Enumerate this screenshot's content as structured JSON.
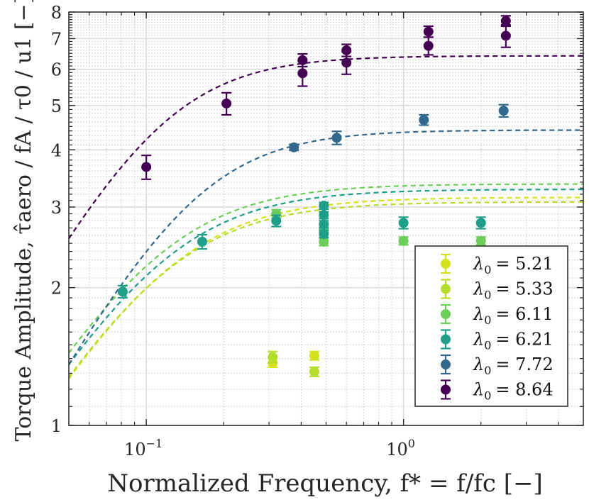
{
  "chart_data": {
    "type": "scatter",
    "xscale": "log",
    "yscale": "log",
    "xlim": [
      0.05,
      5
    ],
    "ylim": [
      1,
      8
    ],
    "grid": true,
    "minor_grid": true,
    "legend_position": "bottom-right",
    "xlabel": "Normalized Frequency, f* = f/fc [−]",
    "ylabel_prefix": "Torque Amplitude, ",
    "ylabel_math": "τ̂aero / fA / τ0 / u1",
    "ylabel_suffix": "[−]",
    "xticks": [
      {
        "value": 0.1,
        "base": "10",
        "exp": "−1"
      },
      {
        "value": 1,
        "base": "10",
        "exp": "0"
      }
    ],
    "yticks": [
      {
        "value": 1,
        "label": "1"
      },
      {
        "value": 2,
        "label": "2"
      },
      {
        "value": 3,
        "label": "3"
      },
      {
        "value": 4,
        "label": "4"
      },
      {
        "value": 5,
        "label": "5"
      },
      {
        "value": 6,
        "label": "6"
      },
      {
        "value": 7,
        "label": "7"
      },
      {
        "value": 8,
        "label": "8"
      }
    ],
    "series": [
      {
        "name": "λ0 = 5.21",
        "lambda_symbol": "λ",
        "lambda_sub": "0",
        "lambda_value": "= 5.21",
        "color": "#D3E21C",
        "points": [
          {
            "x": 0.31,
            "y": 1.37,
            "err": 0.03
          },
          {
            "x": 0.45,
            "y": 1.42,
            "err": 0.03
          }
        ],
        "fit": {
          "a": 3.15,
          "fc": 0.125,
          "n": 0.9
        }
      },
      {
        "name": "λ0 = 5.33",
        "lambda_symbol": "λ",
        "lambda_sub": "0",
        "lambda_value": "= 5.33",
        "color": "#B5DE2B",
        "points": [
          {
            "x": 0.31,
            "y": 1.41,
            "err": 0.04
          },
          {
            "x": 0.45,
            "y": 1.31,
            "err": 0.03
          }
        ],
        "fit": {
          "a": 3.08,
          "fc": 0.12,
          "n": 0.9
        }
      },
      {
        "name": "λ0 = 6.11",
        "lambda_symbol": "λ",
        "lambda_sub": "0",
        "lambda_value": "= 6.11",
        "color": "#6CCE59",
        "points": [
          {
            "x": 0.32,
            "y": 2.9,
            "err": 0.06
          },
          {
            "x": 0.49,
            "y": 2.52,
            "err": 0.05
          },
          {
            "x": 0.49,
            "y": 2.7,
            "err": 0.05
          },
          {
            "x": 1.0,
            "y": 2.53,
            "err": 0.05
          },
          {
            "x": 2.0,
            "y": 2.53,
            "err": 0.05
          }
        ],
        "fit": {
          "a": 3.37,
          "fc": 0.115,
          "n": 0.9
        }
      },
      {
        "name": "λ0 = 6.21",
        "lambda_symbol": "λ",
        "lambda_sub": "0",
        "lambda_value": "= 6.21",
        "color": "#1F9E89",
        "points": [
          {
            "x": 0.081,
            "y": 1.96,
            "err": 0.06
          },
          {
            "x": 0.165,
            "y": 2.52,
            "err": 0.09
          },
          {
            "x": 0.32,
            "y": 2.8,
            "err": 0.08
          },
          {
            "x": 0.49,
            "y": 2.62,
            "err": 0.05
          },
          {
            "x": 0.49,
            "y": 2.75,
            "err": 0.05
          },
          {
            "x": 0.49,
            "y": 2.88,
            "err": 0.05
          },
          {
            "x": 0.49,
            "y": 3.02,
            "err": 0.05
          },
          {
            "x": 1.0,
            "y": 2.77,
            "err": 0.08
          },
          {
            "x": 2.0,
            "y": 2.77,
            "err": 0.08
          }
        ],
        "fit": {
          "a": 3.28,
          "fc": 0.12,
          "n": 0.9
        }
      },
      {
        "name": "λ0 = 7.72",
        "lambda_symbol": "λ",
        "lambda_sub": "0",
        "lambda_value": "= 7.72",
        "color": "#31688E",
        "points": [
          {
            "x": 0.375,
            "y": 4.05,
            "err": 0.06
          },
          {
            "x": 0.55,
            "y": 4.25,
            "err": 0.14
          },
          {
            "x": 1.2,
            "y": 4.65,
            "err": 0.12
          },
          {
            "x": 2.45,
            "y": 4.87,
            "err": 0.15
          }
        ],
        "fit": {
          "a": 4.42,
          "fc": 0.155,
          "n": 1.0
        }
      },
      {
        "name": "λ0 = 8.64",
        "lambda_symbol": "λ",
        "lambda_sub": "0",
        "lambda_value": "= 8.64",
        "color": "#440154",
        "points": [
          {
            "x": 0.1,
            "y": 3.67,
            "err": 0.22
          },
          {
            "x": 0.205,
            "y": 5.05,
            "err": 0.28
          },
          {
            "x": 0.405,
            "y": 5.88,
            "err": 0.37
          },
          {
            "x": 0.405,
            "y": 6.28,
            "err": 0.2
          },
          {
            "x": 0.6,
            "y": 6.2,
            "err": 0.35
          },
          {
            "x": 0.6,
            "y": 6.6,
            "err": 0.2
          },
          {
            "x": 1.25,
            "y": 6.75,
            "err": 0.3
          },
          {
            "x": 1.25,
            "y": 7.25,
            "err": 0.2
          },
          {
            "x": 2.5,
            "y": 7.1,
            "err": 0.4
          },
          {
            "x": 2.5,
            "y": 7.65,
            "err": 0.2
          }
        ],
        "fit": {
          "a": 6.42,
          "fc": 0.115,
          "n": 1.0
        }
      }
    ]
  }
}
